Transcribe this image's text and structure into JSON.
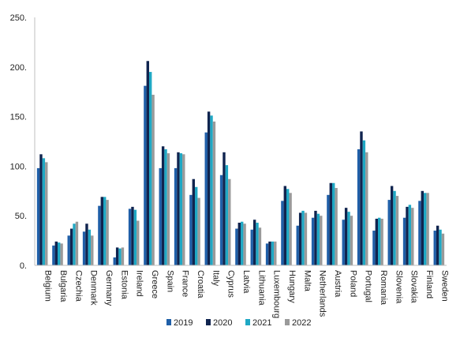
{
  "chart_data": {
    "type": "bar",
    "title": "",
    "xlabel": "",
    "ylabel": "",
    "ylim": [
      0,
      250
    ],
    "yticks": [
      0,
      50,
      100,
      150,
      200,
      250
    ],
    "ytick_labels": [
      "0.",
      "50.",
      "100.",
      "150.",
      "200.",
      "250."
    ],
    "grid": false,
    "legend_position": "bottom",
    "categories": [
      "Belgium",
      "Bulgaria",
      "Czechia",
      "Denmark",
      "Germany",
      "Estonia",
      "Ireland",
      "Greece",
      "Spain",
      "France",
      "Croatia",
      "Italy",
      "Cyprus",
      "Latvia",
      "Lithuania",
      "Luxembourg",
      "Hungary",
      "Malta",
      "Netherlands",
      "Austria",
      "Poland",
      "Portugal",
      "Romania",
      "Slovenia",
      "Slovakia",
      "Finland",
      "Sweden"
    ],
    "series": [
      {
        "name": "2019",
        "color": "#1f5fa8",
        "values": [
          98,
          20,
          30,
          34,
          60,
          8,
          57,
          181,
          98,
          98,
          71,
          134,
          91,
          37,
          36,
          22,
          65,
          40,
          48,
          71,
          46,
          117,
          35,
          66,
          48,
          65,
          35
        ]
      },
      {
        "name": "2020",
        "color": "#10244f",
        "values": [
          112,
          24,
          37,
          42,
          69,
          18,
          59,
          206,
          120,
          114,
          87,
          155,
          114,
          43,
          46,
          24,
          80,
          53,
          55,
          83,
          58,
          135,
          47,
          80,
          59,
          75,
          40
        ]
      },
      {
        "name": "2021",
        "color": "#1fa8c4",
        "values": [
          108,
          23,
          42,
          36,
          69,
          17,
          56,
          195,
          117,
          113,
          79,
          151,
          101,
          44,
          43,
          24,
          77,
          55,
          52,
          83,
          54,
          126,
          48,
          75,
          61,
          73,
          36
        ]
      },
      {
        "name": "2022",
        "color": "#9a9a9a",
        "values": [
          104,
          22,
          44,
          30,
          66,
          18,
          45,
          172,
          113,
          112,
          68,
          145,
          87,
          42,
          38,
          24,
          73,
          53,
          50,
          78,
          50,
          114,
          47,
          70,
          58,
          73,
          32
        ]
      }
    ]
  }
}
